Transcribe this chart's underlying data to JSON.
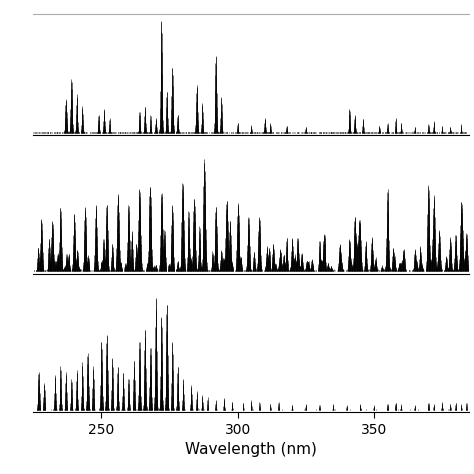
{
  "x_min": 225,
  "x_max": 385,
  "x_ticks": [
    250,
    300,
    350
  ],
  "xlabel": "Wavelength (nm)",
  "background_color": "#ffffff",
  "line_color": "#000000",
  "top_border_color": "#888888"
}
